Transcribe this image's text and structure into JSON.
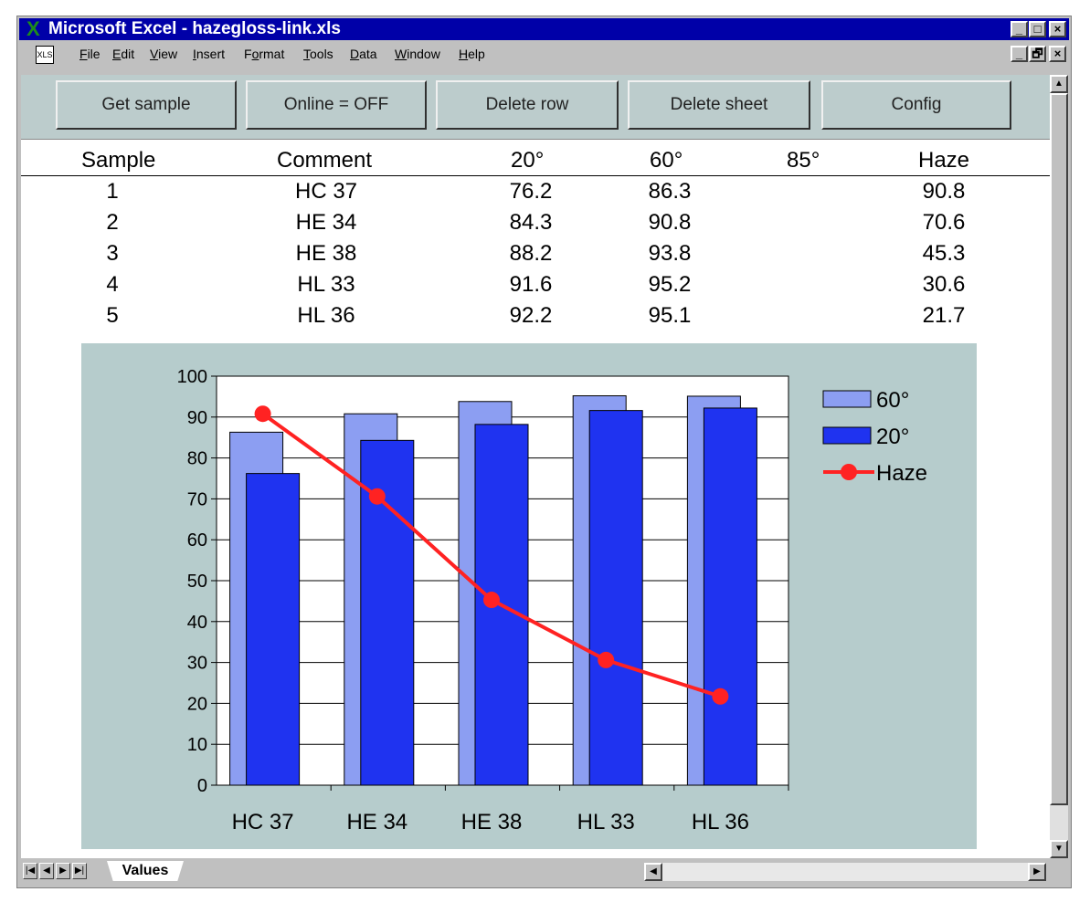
{
  "window": {
    "title": "Microsoft Excel - hazegloss-link.xls",
    "controls": [
      "_",
      "□",
      "×"
    ],
    "doc_controls": [
      "_",
      "🗗",
      "×"
    ]
  },
  "menu": [
    {
      "label": "File",
      "u": "F"
    },
    {
      "label": "Edit",
      "u": "E"
    },
    {
      "label": "View",
      "u": "V"
    },
    {
      "label": "Insert",
      "u": "I"
    },
    {
      "label": "Format",
      "u": "o"
    },
    {
      "label": "Tools",
      "u": "T"
    },
    {
      "label": "Data",
      "u": "D"
    },
    {
      "label": "Window",
      "u": "W"
    },
    {
      "label": "Help",
      "u": "H"
    }
  ],
  "toolbar": {
    "buttons": [
      "Get sample",
      "Online  = OFF",
      "Delete row",
      "Delete sheet",
      "Config"
    ]
  },
  "table": {
    "headers": [
      "Sample",
      "Comment",
      "20°",
      "60°",
      "85°",
      "Haze"
    ],
    "rows": [
      {
        "sample": "1",
        "comment": "HC 37",
        "g20": "76.2",
        "g60": "86.3",
        "g85": "",
        "haze": "90.8"
      },
      {
        "sample": "2",
        "comment": "HE 34",
        "g20": "84.3",
        "g60": "90.8",
        "g85": "",
        "haze": "70.6"
      },
      {
        "sample": "3",
        "comment": "HE 38",
        "g20": "88.2",
        "g60": "93.8",
        "g85": "",
        "haze": "45.3"
      },
      {
        "sample": "4",
        "comment": "HL 33",
        "g20": "91.6",
        "g60": "95.2",
        "g85": "",
        "haze": "30.6"
      },
      {
        "sample": "5",
        "comment": "HL 36",
        "g20": "92.2",
        "g60": "95.1",
        "g85": "",
        "haze": "21.7"
      }
    ]
  },
  "chart_data": {
    "type": "bar",
    "categories": [
      "HC 37",
      "HE 34",
      "HE 38",
      "HL 33",
      "HL 36"
    ],
    "series": [
      {
        "name": "60°",
        "type": "bar",
        "color": "#8c9ef2",
        "values": [
          86.3,
          90.8,
          93.8,
          95.2,
          95.1
        ]
      },
      {
        "name": "20°",
        "type": "bar",
        "color": "#1f33f0",
        "values": [
          76.2,
          84.3,
          88.2,
          91.6,
          92.2
        ]
      },
      {
        "name": "Haze",
        "type": "line",
        "color": "#ff2222",
        "values": [
          90.8,
          70.6,
          45.3,
          30.6,
          21.7
        ]
      }
    ],
    "ylim": [
      0,
      100
    ],
    "yticks": [
      0,
      10,
      20,
      30,
      40,
      50,
      60,
      70,
      80,
      90,
      100
    ],
    "grid": true,
    "legend": "top-right"
  },
  "sheet_tabs": {
    "active": "Values",
    "nav": [
      "|◀",
      "◀",
      "▶",
      "▶|"
    ]
  }
}
